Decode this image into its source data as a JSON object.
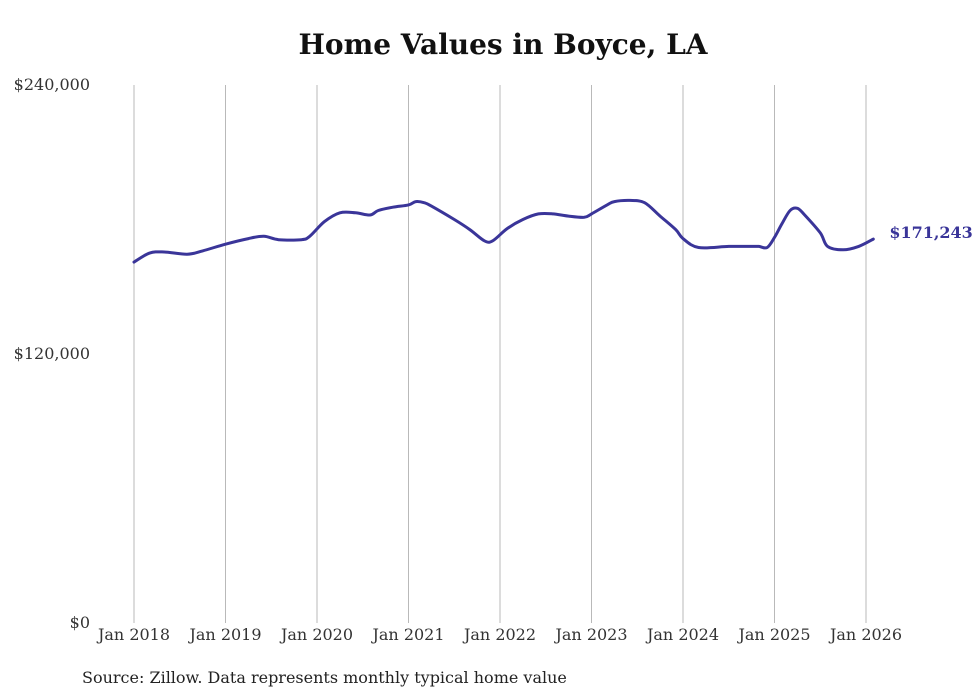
{
  "chart_data": {
    "type": "line",
    "title": "Home Values in Boyce, LA",
    "source_note": "Source: Zillow. Data represents monthly typical home value",
    "xlabel": "",
    "ylabel": "",
    "ylim": [
      0,
      240000
    ],
    "yticks": [
      0,
      120000,
      240000
    ],
    "ytick_labels": [
      "$0",
      "$120,000",
      "$240,000"
    ],
    "xticks": [
      2018,
      2019,
      2020,
      2021,
      2022,
      2023,
      2024,
      2025,
      2026
    ],
    "xtick_labels": [
      "Jan 2018",
      "Jan 2019",
      "Jan 2020",
      "Jan 2021",
      "Jan 2022",
      "Jan 2023",
      "Jan 2024",
      "Jan 2025",
      "Jan 2026"
    ],
    "grid": "vertical",
    "line_color": "#3a3599",
    "end_label": "$171,243",
    "series": [
      {
        "name": "Typical home value",
        "x": [
          2018.0,
          2018.17,
          2018.33,
          2018.58,
          2018.75,
          2019.0,
          2019.25,
          2019.42,
          2019.58,
          2019.83,
          2019.92,
          2020.08,
          2020.25,
          2020.42,
          2020.58,
          2020.67,
          2020.83,
          2021.0,
          2021.08,
          2021.17,
          2021.25,
          2021.5,
          2021.67,
          2021.83,
          2021.92,
          2022.08,
          2022.25,
          2022.42,
          2022.58,
          2022.75,
          2022.92,
          2023.0,
          2023.17,
          2023.25,
          2023.42,
          2023.58,
          2023.75,
          2023.92,
          2024.0,
          2024.17,
          2024.5,
          2024.75,
          2024.83,
          2024.92,
          2025.0,
          2025.08,
          2025.17,
          2025.25,
          2025.33,
          2025.5,
          2025.58,
          2025.75,
          2025.92,
          2026.08
        ],
        "values": [
          161000,
          165000,
          165500,
          164500,
          166000,
          169000,
          171500,
          172500,
          171000,
          171000,
          172500,
          179000,
          183000,
          183000,
          182000,
          184000,
          185500,
          186500,
          188000,
          187500,
          186000,
          180000,
          175500,
          170500,
          170500,
          176000,
          180000,
          182500,
          182500,
          181500,
          181000,
          182500,
          186500,
          188000,
          188500,
          187500,
          181500,
          175500,
          171500,
          167500,
          168000,
          168000,
          168000,
          167500,
          172000,
          178000,
          184000,
          185000,
          182000,
          174000,
          168000,
          166500,
          168000,
          171243
        ]
      }
    ]
  }
}
